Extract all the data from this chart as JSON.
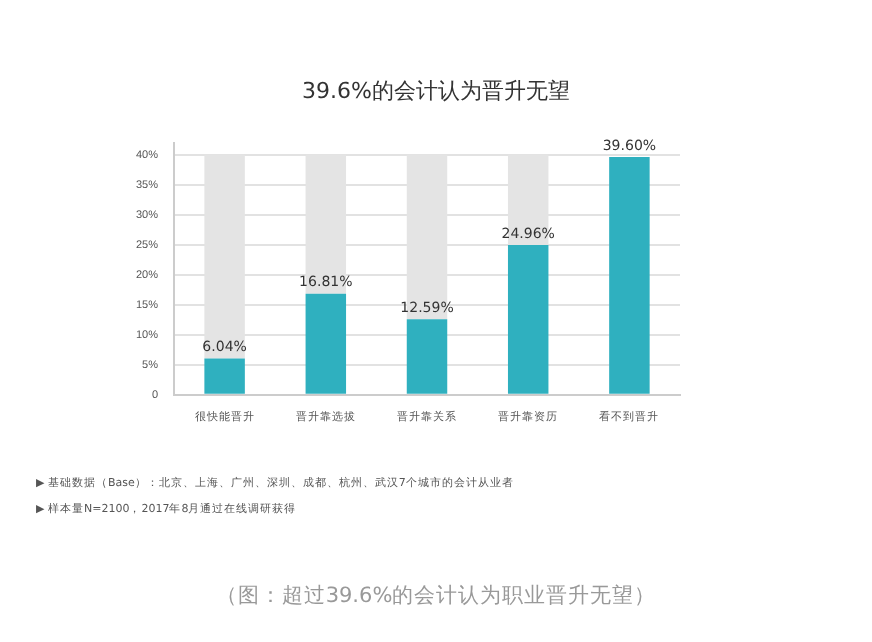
{
  "chart_data": {
    "type": "bar",
    "title": "39.6%的会计认为晋升无望",
    "categories": [
      "很快能晋升",
      "晋升靠选拔",
      "晋升靠关系",
      "晋升靠资历",
      "看不到晋升"
    ],
    "stacked": true,
    "series": [
      {
        "color": "#2fb0bf",
        "values": [
          6.04,
          16.81,
          12.59,
          24.96,
          39.6
        ],
        "value_labels": [
          "6.04%",
          "16.81%",
          "12.59%",
          "24.96%",
          "39.60%"
        ]
      },
      {
        "color": "#e4e4e4",
        "values": [
          33.96,
          23.19,
          27.41,
          15.04,
          null
        ]
      }
    ],
    "ylim": [
      0,
      42
    ],
    "yticks": [
      {
        "value": 0,
        "label": "0"
      },
      {
        "value": 5,
        "label": "5%"
      },
      {
        "value": 10,
        "label": "10%"
      },
      {
        "value": 15,
        "label": "15%"
      },
      {
        "value": 20,
        "label": "20%"
      },
      {
        "value": 25,
        "label": "25%"
      },
      {
        "value": 30,
        "label": "30%"
      },
      {
        "value": 35,
        "label": "35%"
      },
      {
        "value": 40,
        "label": "40%"
      }
    ],
    "grid": "y",
    "legend": false,
    "annotations": [
      "▶ 基础数据（Base）：北京、上海、广州、深圳、成都、杭州、武汉7个城市的会计从业者",
      "▶ 样本量N=2100，2017年8月通过在线调研获得",
      "（图：超过39.6%的会计认为职业晋升无望）"
    ]
  }
}
